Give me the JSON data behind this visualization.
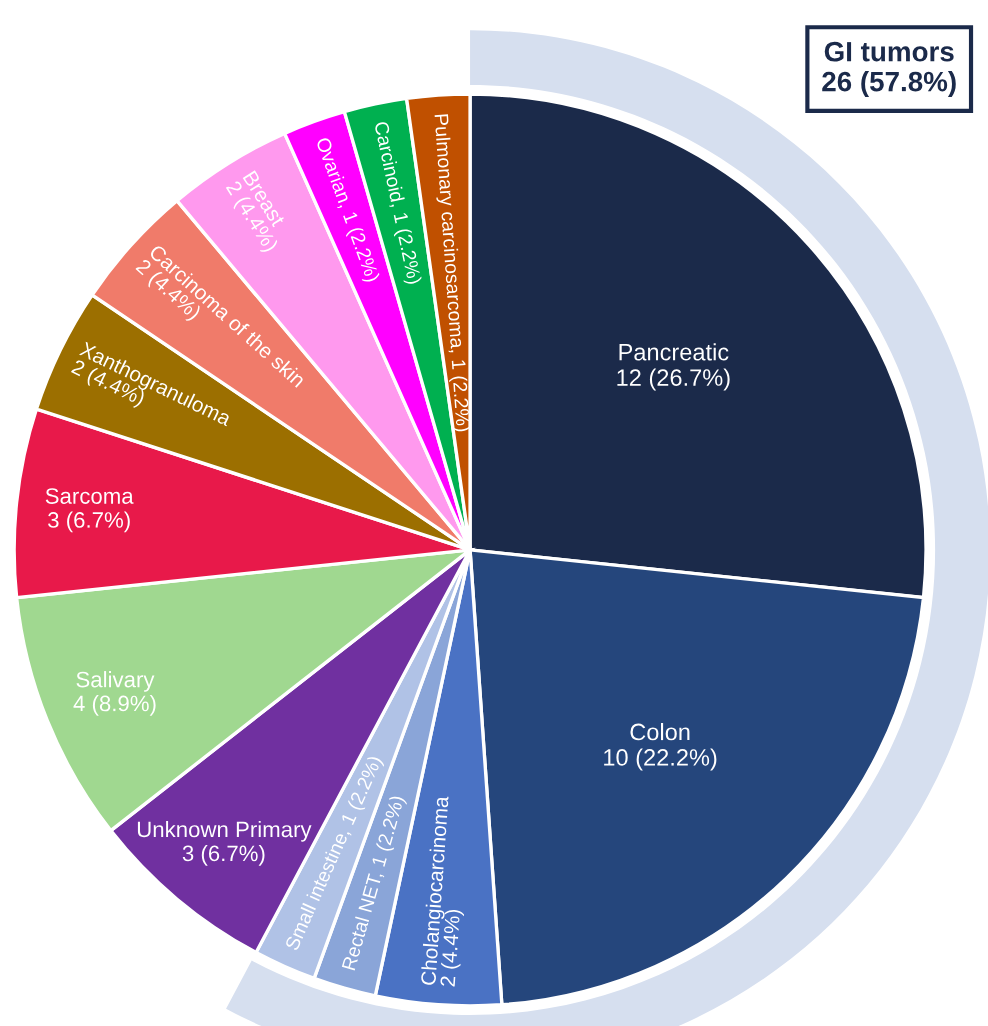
{
  "chart_data": {
    "type": "pie",
    "categories": [
      "Pancreatic",
      "Colon",
      "Cholangiocarcinoma",
      "Rectal NET",
      "Small intestine",
      "Unknown Primary",
      "Salivary",
      "Sarcoma",
      "Xanthogranuloma",
      "Carcinoma of the skin",
      "Breast",
      "Ovarian",
      "Carcinoid",
      "Pulmonary carcinosarcoma"
    ],
    "values": [
      12,
      10,
      2,
      1,
      1,
      3,
      4,
      3,
      2,
      2,
      2,
      1,
      1,
      1
    ],
    "value_labels": [
      "12 (26.7%)",
      "10 (22.2%)",
      "2 (4.4%)",
      "1 (2.2%)",
      "1 (2.2%)",
      "3 (6.7%)",
      "4 (8.9%)",
      "3 (6.7%)",
      "2 (4.4%)",
      "2 (4.4%)",
      "2 (4.4%)",
      "1 (2.2%)",
      "1 (2.2%)",
      "1 (2.2%)"
    ],
    "colors": [
      "#1b2a4a",
      "#25467c",
      "#4a72c4",
      "#8aa5d8",
      "#b0c2e6",
      "#7030a0",
      "#a0d890",
      "#e8194a",
      "#9c6f00",
      "#f07b6a",
      "#ff99ee",
      "#ff00ff",
      "#00b050",
      "#c05000"
    ],
    "annotations": [
      "GI tumors\n26 (57.8%)"
    ]
  }
}
